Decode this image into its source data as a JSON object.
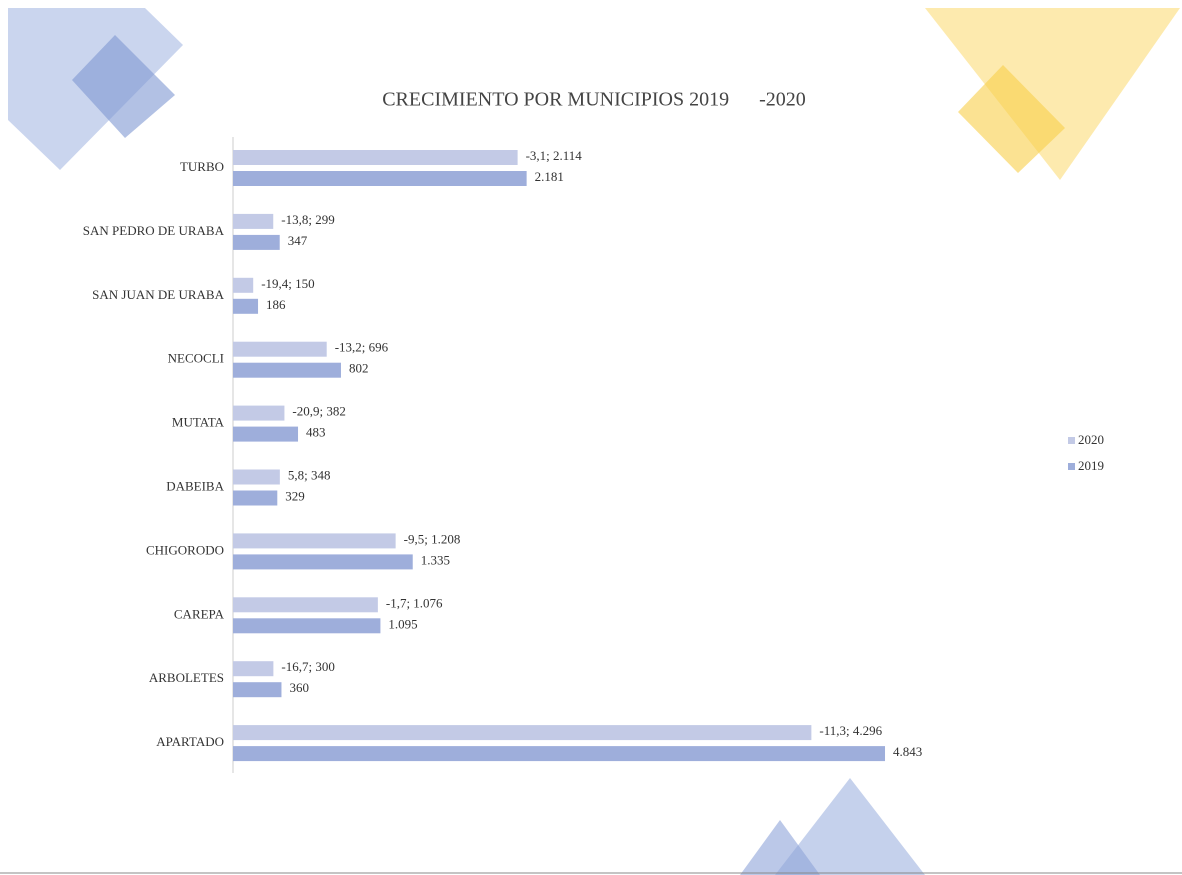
{
  "chart_data": {
    "type": "hbar",
    "title": "CRECIMIENTO POR MUNICIPIOS 2019      -2020",
    "categories": [
      "TURBO",
      "SAN PEDRO DE URABA",
      "SAN JUAN DE URABA",
      "NECOCLI",
      "MUTATA",
      "DABEIBA",
      "CHIGORODO",
      "CAREPA",
      "ARBOLETES",
      "APARTADO"
    ],
    "series": [
      {
        "name": "2020",
        "color": "#c3cae6",
        "values": [
          2114,
          299,
          150,
          696,
          382,
          348,
          1208,
          1076,
          300,
          4296
        ],
        "value_labels": [
          "-3,1; 2.114",
          "-13,8; 299",
          "-19,4; 150",
          "-13,2; 696",
          "-20,9; 382",
          "5,8; 348",
          "-9,5; 1.208",
          "-1,7; 1.076",
          "-16,7; 300",
          "-11,3; 4.296"
        ]
      },
      {
        "name": "2019",
        "color": "#9eaedb",
        "values": [
          2181,
          347,
          186,
          802,
          483,
          329,
          1335,
          1095,
          360,
          4843
        ],
        "value_labels": [
          "2.181",
          "347",
          "186",
          "802",
          "483",
          "329",
          "1.335",
          "1.095",
          "360",
          "4.843"
        ]
      }
    ],
    "xlim": [
      0,
      6000
    ],
    "legend": "right"
  }
}
